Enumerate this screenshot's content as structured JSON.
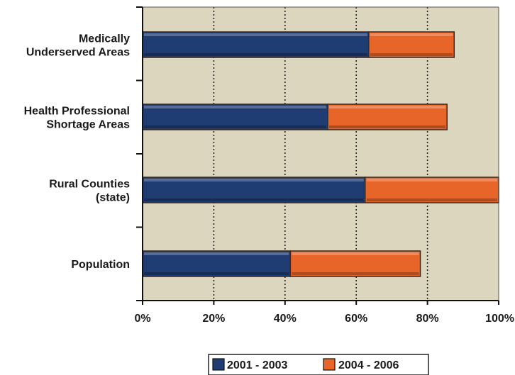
{
  "chart_data": {
    "type": "bar",
    "orientation": "horizontal",
    "stacked": true,
    "categories": [
      [
        "Medically",
        "Underserved Areas"
      ],
      [
        "Health Professional",
        "Shortage Areas"
      ],
      [
        "Rural Counties",
        "(state)"
      ],
      [
        "Population"
      ]
    ],
    "series": [
      {
        "name": "2001 - 2003",
        "color": "#1f3d73",
        "values": [
          63.5,
          52,
          62.5,
          41.5
        ]
      },
      {
        "name": "2004 - 2006",
        "color": "#e8652a",
        "values": [
          24,
          33.5,
          37.5,
          36.5
        ]
      }
    ],
    "xlim": [
      0,
      100
    ],
    "xticks": [
      0,
      20,
      40,
      60,
      80,
      100
    ],
    "xtick_labels": [
      "0%",
      "20%",
      "40%",
      "60%",
      "80%",
      "100%"
    ],
    "grid": "vertical dotted",
    "plot_background": "#dcd6bf",
    "legend_position": "bottom-center"
  }
}
